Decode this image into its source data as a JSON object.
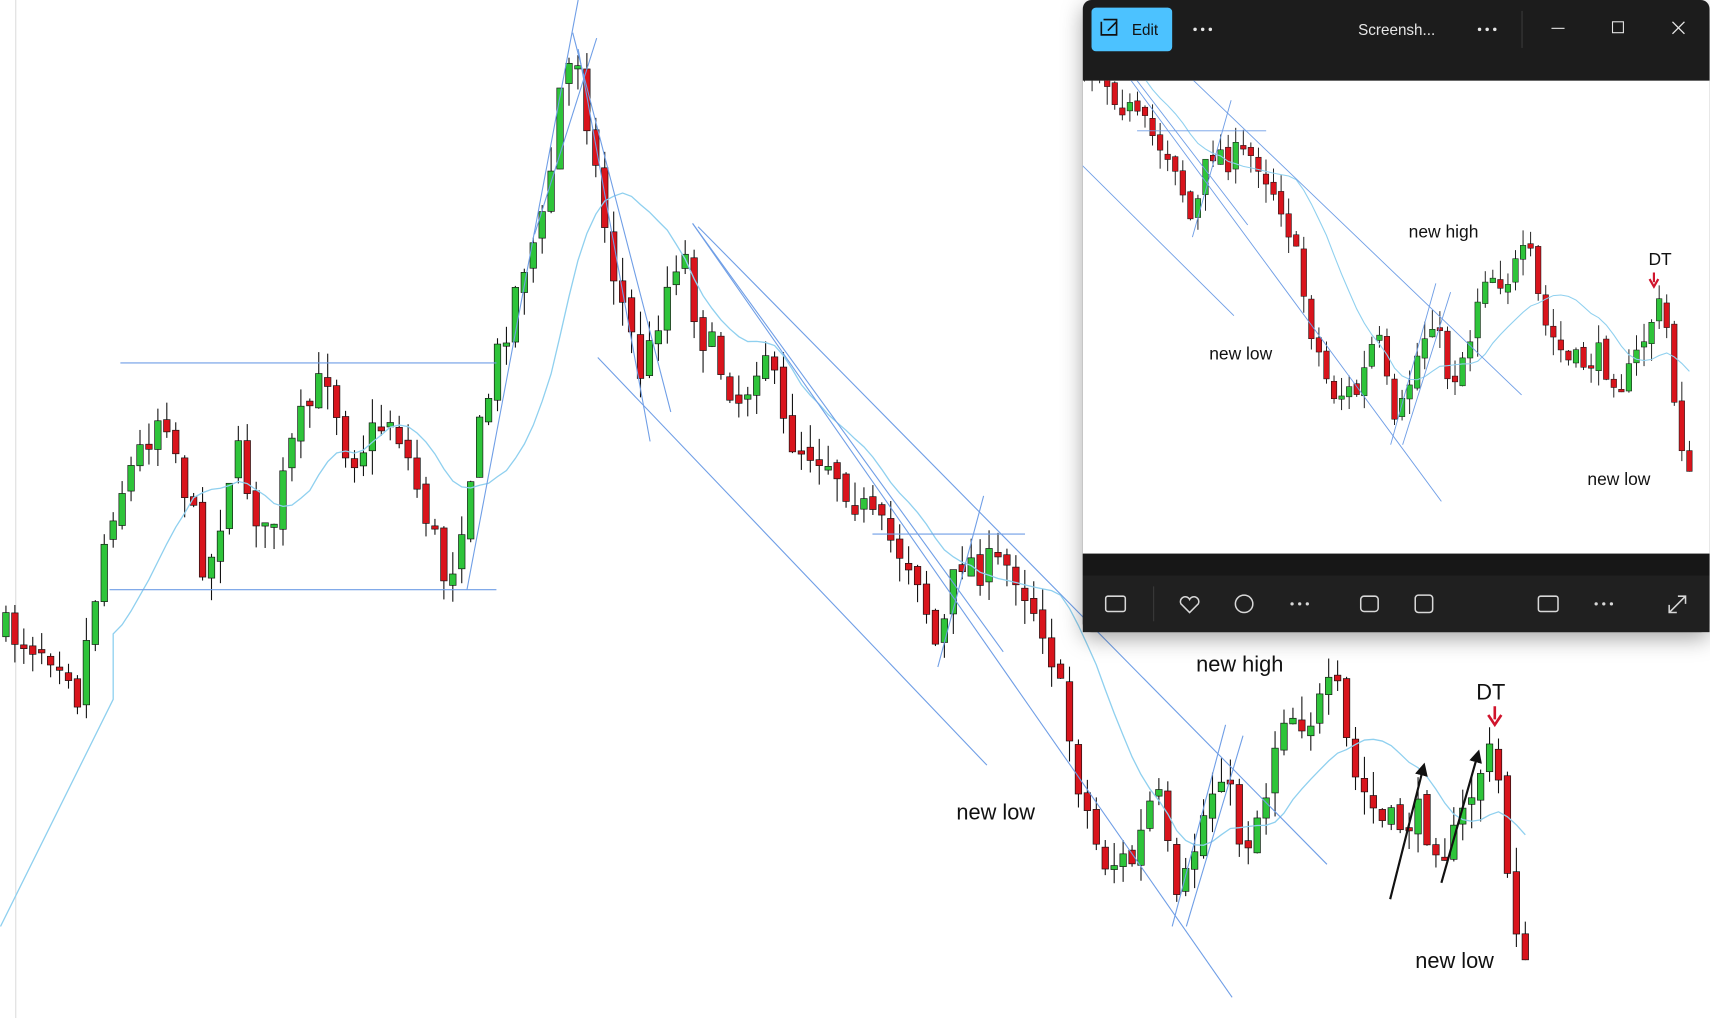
{
  "window": {
    "edit_button": "Edit",
    "title": "Screensh..."
  },
  "main_annotations": [
    "new low",
    "new high",
    "DT",
    "new low"
  ],
  "preview_annotations": [
    "new high",
    "new low",
    "DT",
    "new low"
  ]
}
